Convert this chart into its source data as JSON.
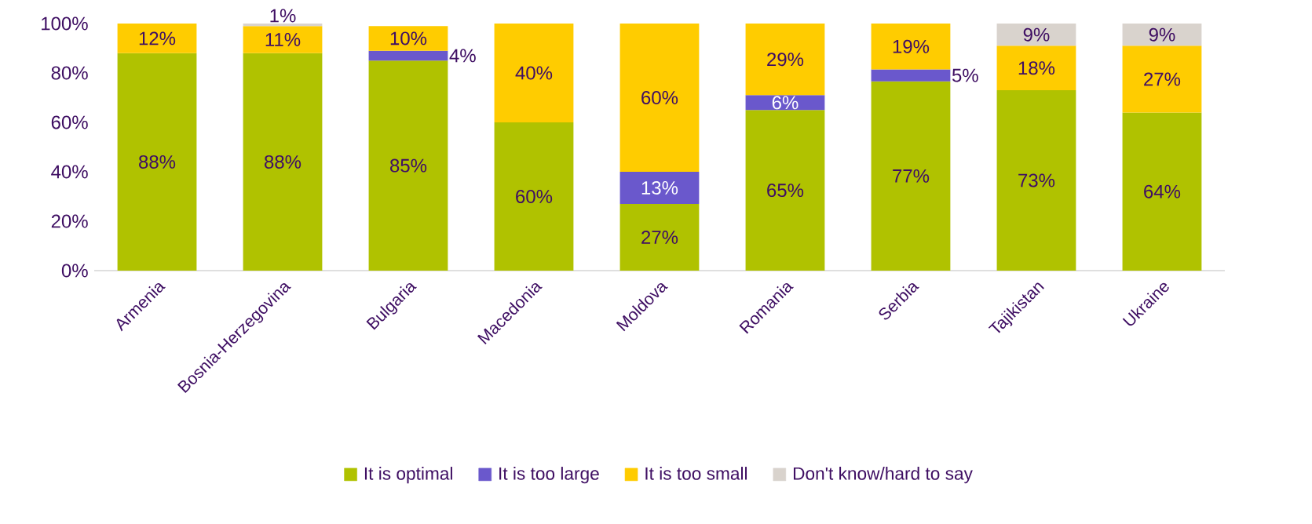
{
  "chart_data": {
    "type": "bar",
    "stacked": true,
    "legend": "bottom",
    "categories": [
      "Armenia",
      "Bosnia-Herzegovina",
      "Bulgaria",
      "Macedonia",
      "Moldova",
      "Romania",
      "Serbia",
      "Tajikistan",
      "Ukraine"
    ],
    "ylim": [
      0,
      100
    ],
    "yticks": [
      {
        "value": 0,
        "label": "0%"
      },
      {
        "value": 20,
        "label": "20%"
      },
      {
        "value": 40,
        "label": "40%"
      },
      {
        "value": 60,
        "label": "60%"
      },
      {
        "value": 80,
        "label": "80%"
      },
      {
        "value": 100,
        "label": "100%"
      }
    ],
    "series": [
      {
        "name": "It is optimal",
        "color": "#b0c200",
        "values": [
          88,
          88,
          85,
          60,
          27,
          65,
          76.6,
          73,
          64
        ],
        "value_labels": [
          "88%",
          "88%",
          "85%",
          "60%",
          "27%",
          "65%",
          "77%",
          "73%",
          "64%"
        ]
      },
      {
        "name": "It is too large",
        "color": "#6a58cc",
        "values": [
          null,
          null,
          4,
          null,
          13,
          6,
          4.8,
          null,
          null
        ],
        "value_labels": [
          null,
          null,
          "4%",
          null,
          "13%",
          "6%",
          "5%",
          null,
          null
        ]
      },
      {
        "name": "It is too small",
        "color": "#ffcc00",
        "values": [
          12,
          11,
          10,
          40,
          60,
          29,
          18.6,
          18,
          27
        ],
        "value_labels": [
          "12%",
          "11%",
          "10%",
          "40%",
          "60%",
          "29%",
          "19%",
          "18%",
          "27%"
        ]
      },
      {
        "name": "Don't know/hard to say",
        "color": "#d9d3cd",
        "values": [
          null,
          1,
          null,
          null,
          null,
          null,
          null,
          9,
          9
        ],
        "value_labels": [
          null,
          "1%",
          null,
          null,
          null,
          null,
          null,
          "9%",
          "9%"
        ]
      }
    ]
  }
}
